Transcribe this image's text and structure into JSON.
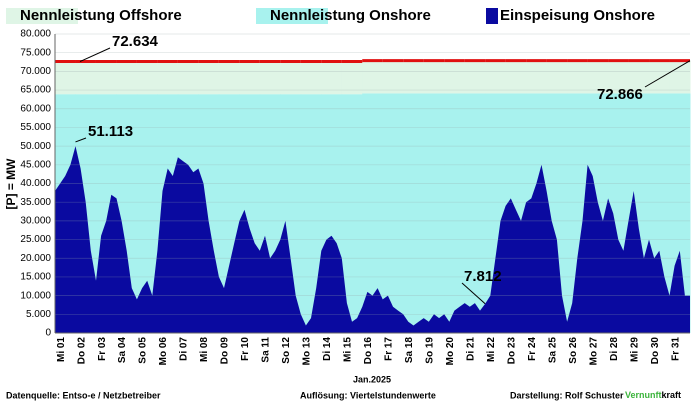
{
  "chart_data": {
    "type": "area",
    "y_label": "[P] = MW",
    "x_label": "Jan.2025",
    "categories": [
      "Mi 01",
      "Do 02",
      "Fr 03",
      "Sa 04",
      "So 05",
      "Mo 06",
      "Di 07",
      "Mi 08",
      "Do 09",
      "Fr 10",
      "Sa 11",
      "So 12",
      "Mo 13",
      "Di 14",
      "Mi 15",
      "Do 16",
      "Fr 17",
      "Sa 18",
      "So 19",
      "Mo 20",
      "Di 21",
      "Mi 22",
      "Do 23",
      "Fr 24",
      "Sa 25",
      "So 26",
      "Mo 27",
      "Di 28",
      "Mi 29",
      "Do 30",
      "Fr 31"
    ],
    "ylim": [
      0,
      80000
    ],
    "yticks": [
      0,
      {
        "value": 5000,
        "label": "5.000"
      },
      {
        "value": 10000,
        "label": "10.000"
      },
      {
        "value": 15000,
        "label": "15.000"
      },
      {
        "value": 20000,
        "label": "20.000"
      },
      {
        "value": 25000,
        "label": "25.000"
      },
      {
        "value": 30000,
        "label": "30.000"
      },
      {
        "value": 35000,
        "label": "35.000"
      },
      {
        "value": 40000,
        "label": "40.000"
      },
      {
        "value": 45000,
        "label": "45.000"
      },
      {
        "value": 50000,
        "label": "50.000"
      },
      {
        "value": 55000,
        "label": "55.000"
      },
      {
        "value": 60000,
        "label": "60.000"
      },
      {
        "value": 65000,
        "label": "65.000"
      },
      {
        "value": 70000,
        "label": "70.000"
      },
      {
        "value": 75000,
        "label": "75.000"
      },
      {
        "value": 80000,
        "label": "80.000"
      }
    ],
    "grid": true,
    "series": [
      {
        "name": "Nennleistung Offshore",
        "color": "#dff5e6",
        "values": [
          8734,
          8734,
          8734,
          8734,
          8734,
          8734,
          8734,
          8734,
          8734,
          8734,
          8734,
          8734,
          8734,
          8734,
          8734,
          8766,
          8766,
          8766,
          8766,
          8766,
          8766,
          8766,
          8766,
          8766,
          8766,
          8766,
          8766,
          8766,
          8766,
          8766,
          8766
        ]
      },
      {
        "name": "Nennleistung Onshore",
        "color": "#a8f2ee",
        "values": [
          63900,
          63900,
          63900,
          63900,
          63900,
          63900,
          63900,
          63900,
          63900,
          63900,
          63900,
          63900,
          63900,
          63900,
          63900,
          64100,
          64100,
          64100,
          64100,
          64100,
          64100,
          64100,
          64100,
          64100,
          64100,
          64100,
          64100,
          64100,
          64100,
          64100,
          64100
        ]
      },
      {
        "name": "Einspeisung Onshore",
        "color": "#0a0aa0",
        "values": [
          [
            38000,
            40000,
            42000,
            45000
          ],
          [
            50000,
            44000,
            35000,
            22000
          ],
          [
            14000,
            26000,
            30000,
            37000
          ],
          [
            36000,
            30000,
            22000,
            12000
          ],
          [
            9000,
            12000,
            14000,
            10000
          ],
          [
            22000,
            38000,
            44000,
            42000
          ],
          [
            47000,
            46000,
            45000,
            43000
          ],
          [
            44000,
            40000,
            30000,
            22000
          ],
          [
            15000,
            12000,
            18000,
            24000
          ],
          [
            30000,
            33000,
            28000,
            24000
          ],
          [
            22000,
            26000,
            20000,
            22000
          ],
          [
            25000,
            30000,
            20000,
            10000
          ],
          [
            5000,
            2000,
            4000,
            12000
          ],
          [
            22000,
            25000,
            26000,
            24000
          ],
          [
            20000,
            8000,
            3000,
            4000
          ],
          [
            7000,
            11000,
            10000,
            12000
          ],
          [
            9000,
            10000,
            7000,
            6000
          ],
          [
            5000,
            3000,
            2000,
            3000
          ],
          [
            4000,
            3000,
            5000,
            4000
          ],
          [
            5000,
            3000,
            6000,
            7000
          ],
          [
            8000,
            7000,
            8000,
            6000
          ],
          [
            7812,
            10000,
            20000,
            30000
          ],
          [
            34000,
            36000,
            33000,
            30000
          ],
          [
            35000,
            36000,
            40000,
            45000
          ],
          [
            38000,
            30000,
            25000,
            10000
          ],
          [
            3000,
            8000,
            20000,
            30000
          ],
          [
            45000,
            42000,
            35000,
            30000
          ],
          [
            36000,
            32000,
            25000,
            22000
          ],
          [
            30000,
            38000,
            28000,
            20000
          ],
          [
            25000,
            20000,
            22000,
            15000
          ],
          [
            10000,
            18000,
            22000,
            10000
          ]
        ]
      }
    ],
    "total_color": "#e01010",
    "annotations": [
      {
        "value": 72634,
        "label": "72.634"
      },
      {
        "value": 72866,
        "label": "72.866"
      },
      {
        "value": 51113,
        "label": "51.113"
      },
      {
        "value": 7812,
        "label": "7.812"
      }
    ]
  },
  "footer": {
    "source": "Datenquelle:  Entso-e  / Netzbetreiber",
    "resolution": "Auflösung: Viertelstundenwerte",
    "author": "Darstellung:  Rolf Schuster",
    "brand_a": "Vernunft",
    "brand_b": "kraft"
  }
}
